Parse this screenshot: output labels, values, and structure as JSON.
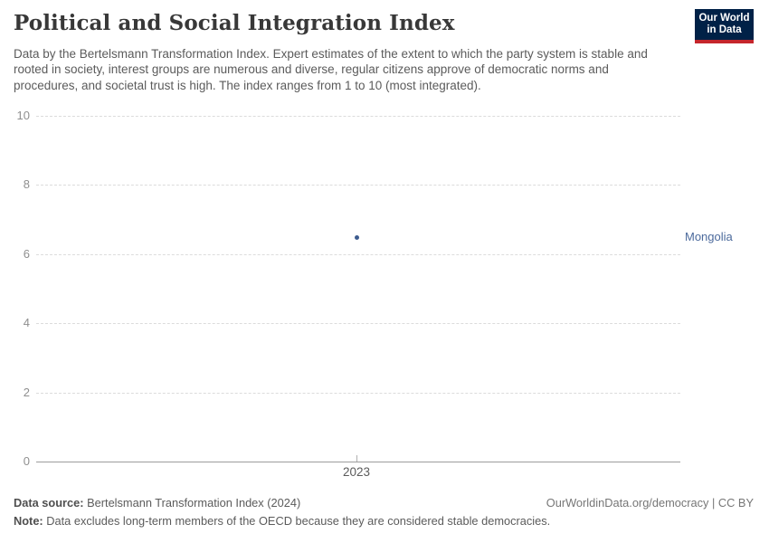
{
  "header": {
    "title": "Political and Social Integration Index",
    "subtitle": "Data by the Bertelsmann Transformation Index. Expert estimates of the extent to which the party system is stable and rooted in society, interest groups are numerous and diverse, regular citizens approve of democratic norms and procedures, and societal trust is high. The index ranges from 1 to 10 (most integrated).",
    "logo": {
      "line1": "Our World",
      "line2": "in Data",
      "bg_color": "#002147",
      "accent_color": "#C5262C"
    }
  },
  "chart_data": {
    "type": "scatter",
    "title": "Political and Social Integration Index",
    "x": [
      2023
    ],
    "xtick_labels": [
      "2023"
    ],
    "series": [
      {
        "name": "Mongolia",
        "values": [
          6.5
        ]
      }
    ],
    "entity_label": "Mongolia",
    "xlabel": "",
    "ylabel": "",
    "ylim": [
      0,
      10
    ],
    "yticks": [
      0,
      2,
      4,
      6,
      8,
      10
    ],
    "grid": "horizontal-dashed",
    "legend_position": "right-entity-label",
    "colors": {
      "point": "#3D5C8F",
      "entity_label": "#4C6A9C",
      "gridline": "#dcdcdc",
      "axis_line": "#9d9d9d",
      "ytick_text": "#8f8f8f"
    }
  },
  "footer": {
    "source_label": "Data source:",
    "source_value": "Bertelsmann Transformation Index (2024)",
    "note_label": "Note:",
    "note_value": "Data excludes long-term members of the OECD because they are considered stable democracies.",
    "rights": "OurWorldinData.org/democracy | CC BY"
  }
}
